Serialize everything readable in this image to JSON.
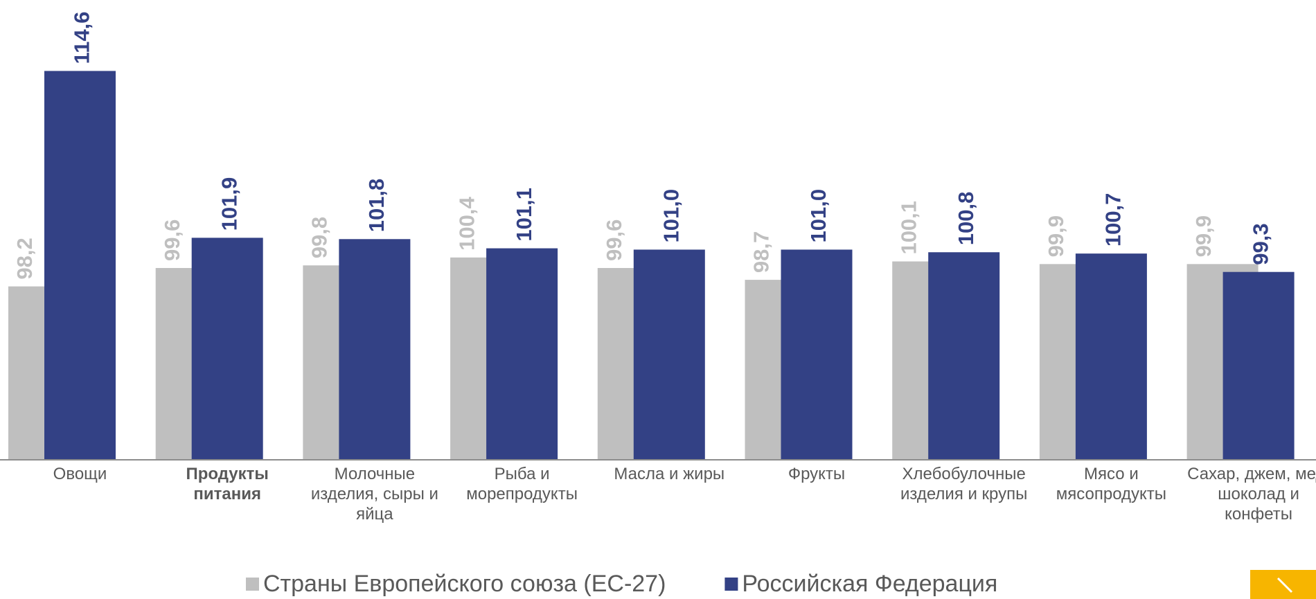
{
  "chart_data": {
    "type": "bar",
    "categories": [
      "Овощи",
      "Продукты питания",
      "Молочные изделия, сыры и яйца",
      "Рыба и морепродукты",
      "Масла и жиры",
      "Фрукты",
      "Хлебобулочные изделия и крупы",
      "Мясо и мясопродукты",
      "Сахар, джем, мед, шоколад и конфеты"
    ],
    "bold_category_index": 1,
    "series": [
      {
        "name": "Страны Европейского союза (ЕС-27)",
        "color": "#bfbfbf",
        "values": [
          98.2,
          99.6,
          99.8,
          100.4,
          99.6,
          98.7,
          100.1,
          99.9,
          99.9
        ],
        "value_labels": [
          "98,2",
          "99,6",
          "99,8",
          "100,4",
          "99,6",
          "98,7",
          "100,1",
          "99,9",
          "99,9"
        ]
      },
      {
        "name": "Российская Федерация",
        "color": "#334185",
        "values": [
          114.6,
          101.9,
          101.8,
          101.1,
          101.0,
          101.0,
          100.8,
          100.7,
          99.3
        ],
        "value_labels": [
          "114,6",
          "101,9",
          "101,8",
          "101,1",
          "101,0",
          "101,0",
          "100,8",
          "100,7",
          "99,3"
        ]
      }
    ],
    "ylim": [
      85,
      120
    ],
    "legend": "bottom"
  }
}
